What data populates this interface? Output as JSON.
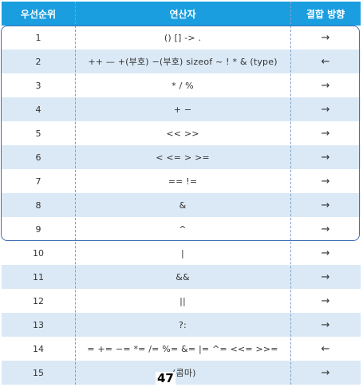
{
  "header": {
    "priority": "우선순위",
    "operator": "연산자",
    "direction": "결합 방향"
  },
  "rows": [
    {
      "priority": "1",
      "operator": "() [] -> .",
      "direction": "→"
    },
    {
      "priority": "2",
      "operator": "++ — +(부호) −(부호) sizeof ~ ! * & (type)",
      "direction": "←"
    },
    {
      "priority": "3",
      "operator": "* / %",
      "direction": "→"
    },
    {
      "priority": "4",
      "operator": "+ −",
      "direction": "→"
    },
    {
      "priority": "5",
      "operator": "<< >>",
      "direction": "→"
    },
    {
      "priority": "6",
      "operator": "< <= > >=",
      "direction": "→"
    },
    {
      "priority": "7",
      "operator": "== !=",
      "direction": "→"
    },
    {
      "priority": "8",
      "operator": "&",
      "direction": "→"
    },
    {
      "priority": "9",
      "operator": "^",
      "direction": "→"
    },
    {
      "priority": "10",
      "operator": "|",
      "direction": "→"
    },
    {
      "priority": "11",
      "operator": "&&",
      "direction": "→"
    },
    {
      "priority": "12",
      "operator": "||",
      "direction": "→"
    },
    {
      "priority": "13",
      "operator": "?:",
      "direction": "→"
    },
    {
      "priority": "14",
      "operator": "= += −= *= /= %= &= |= ^= <<= >>=",
      "direction": "←"
    },
    {
      "priority": "15",
      "operator": ",(콤마)",
      "direction": "→"
    }
  ],
  "page_number": "47",
  "colors": {
    "header_bg": "#1a9ee0",
    "shaded_row": "#dbe9f6",
    "highlight_border": "#3f6fb5"
  }
}
